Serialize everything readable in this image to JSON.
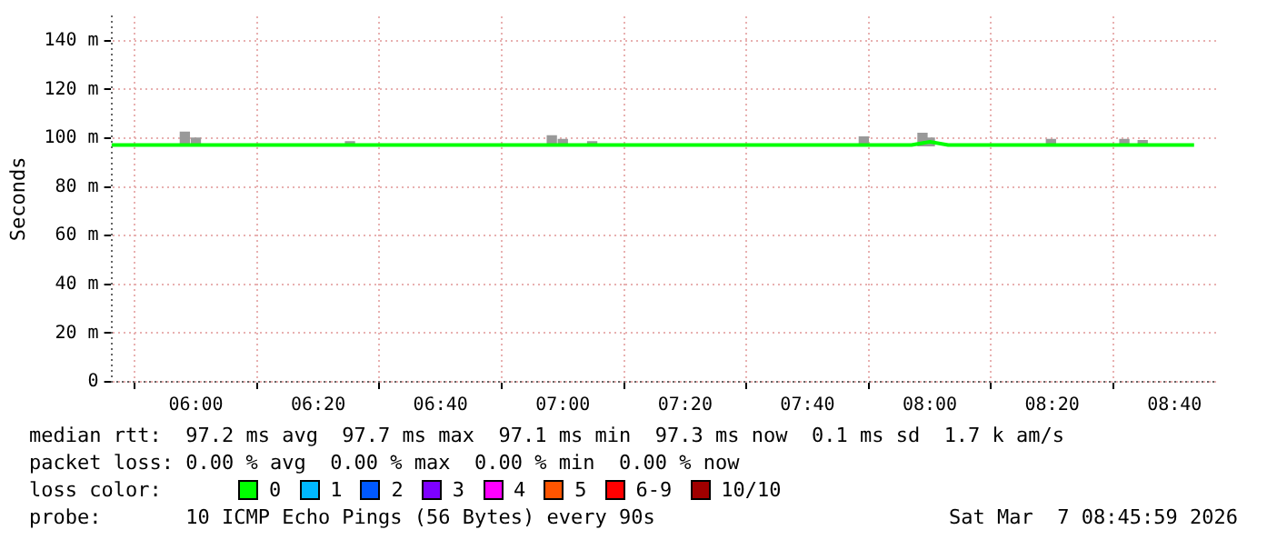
{
  "chart_data": {
    "type": "line",
    "ylabel": "Seconds",
    "legend_title": "loss color:",
    "legend": "bottom",
    "grid": true,
    "marker": "none",
    "line_style": "solid",
    "xlim": [
      5.77,
      8.78
    ],
    "xticks": [
      {
        "value": 6,
        "label": "06:00"
      },
      {
        "value": 6.3333,
        "label": "06:20"
      },
      {
        "value": 6.6667,
        "label": "06:40"
      },
      {
        "value": 7,
        "label": "07:00"
      },
      {
        "value": 7.3333,
        "label": "07:20"
      },
      {
        "value": 7.6667,
        "label": "07:40"
      },
      {
        "value": 8,
        "label": "08:00"
      },
      {
        "value": 8.3333,
        "label": "08:20"
      },
      {
        "value": 8.6667,
        "label": "08:40"
      }
    ],
    "ylim": [
      0,
      150
    ],
    "yticks": [
      0,
      {
        "value": 20,
        "label": "20 m"
      },
      {
        "value": 40,
        "label": "40 m"
      },
      {
        "value": 60,
        "label": "60 m"
      },
      {
        "value": 80,
        "label": "80 m"
      },
      {
        "value": 100,
        "label": "100 m"
      },
      {
        "value": 120,
        "label": "120 m"
      },
      {
        "value": 140,
        "label": "140 m"
      }
    ],
    "series": [
      {
        "type": "bar",
        "color": "#999999",
        "x": [
          5.97,
          6.0,
          6.42,
          6.97,
          7.0,
          7.08,
          7.82,
          7.98,
          8.0,
          8.33,
          8.53,
          8.58
        ],
        "base": [
          96.9,
          96.9,
          96.9,
          96.9,
          96.9,
          96.9,
          96.9,
          96.9,
          96.9,
          96.9,
          96.9,
          96.9
        ],
        "values": [
          5.6,
          3.1,
          1.6,
          4.1,
          2.6,
          1.6,
          3.6,
          5.1,
          3.1,
          2.6,
          2.6,
          2.1
        ]
      },
      {
        "name": "0",
        "color": "#00ff00",
        "x": [
          5.77,
          6.0,
          6.5,
          7.0,
          7.5,
          7.95,
          8.0,
          8.05,
          8.5,
          8.72
        ],
        "values": [
          97.2,
          97.2,
          97.2,
          97.2,
          97.2,
          97.2,
          98.5,
          97.2,
          97.2,
          97.2
        ]
      },
      {
        "name": "1",
        "color": "#00b8ff"
      },
      {
        "name": "2",
        "color": "#0059ff"
      },
      {
        "name": "3",
        "color": "#7e00ff"
      },
      {
        "name": "4",
        "color": "#ff00ff"
      },
      {
        "name": "5",
        "color": "#ff5500"
      },
      {
        "name": "6-9",
        "color": "#ff0000"
      },
      {
        "name": "10/10",
        "color": "#a10000"
      }
    ],
    "annotations": [
      "median rtt:  97.2 ms avg  97.7 ms max  97.1 ms min  97.3 ms now  0.1 ms sd  1.7 k am/s",
      "packet loss: 0.00 % avg  0.00 % max  0.00 % min  0.00 % now",
      "probe:       10 ICMP Echo Pings (56 Bytes) every 90s",
      "Sat Mar  7 08:45:59 2026"
    ]
  }
}
